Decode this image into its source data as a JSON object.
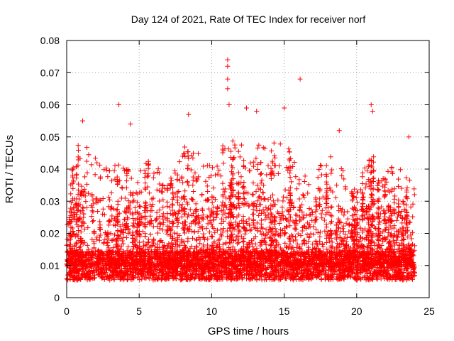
{
  "chart_data": {
    "type": "scatter",
    "title": "Day 124 of 2021, Rate Of TEC Index for receiver norf",
    "xlabel": "GPS time / hours",
    "ylabel": "ROTI / TECUs",
    "xlim": [
      0,
      25
    ],
    "ylim": [
      0,
      0.08
    ],
    "xticks": [
      0,
      5,
      10,
      15,
      20,
      25
    ],
    "yticks": [
      0,
      0.01,
      0.02,
      0.03,
      0.04,
      0.05,
      0.06,
      0.07,
      0.08
    ],
    "xtick_labels": [
      "0",
      "5",
      "10",
      "15",
      "20",
      "25"
    ],
    "ytick_labels": [
      "0",
      "0.01",
      "0.02",
      "0.03",
      "0.04",
      "0.05",
      "0.06",
      "0.07",
      "0.08"
    ],
    "grid": true,
    "marker": "plus",
    "marker_color": "#ff0000",
    "x_data_range": [
      0,
      24
    ],
    "baseline_typical": 0.01,
    "notable_points": [
      {
        "x": 1.1,
        "y": 0.055
      },
      {
        "x": 3.6,
        "y": 0.06
      },
      {
        "x": 4.4,
        "y": 0.054
      },
      {
        "x": 8.4,
        "y": 0.057
      },
      {
        "x": 11.1,
        "y": 0.074
      },
      {
        "x": 11.1,
        "y": 0.072
      },
      {
        "x": 11.1,
        "y": 0.068
      },
      {
        "x": 11.1,
        "y": 0.065
      },
      {
        "x": 11.2,
        "y": 0.06
      },
      {
        "x": 12.4,
        "y": 0.059
      },
      {
        "x": 13.1,
        "y": 0.058
      },
      {
        "x": 15.0,
        "y": 0.059
      },
      {
        "x": 16.1,
        "y": 0.068
      },
      {
        "x": 18.8,
        "y": 0.052
      },
      {
        "x": 21.0,
        "y": 0.06
      },
      {
        "x": 21.1,
        "y": 0.058
      },
      {
        "x": 23.6,
        "y": 0.05
      }
    ],
    "activity_envelope": [
      {
        "x": 0,
        "y": 0.035
      },
      {
        "x": 1,
        "y": 0.05
      },
      {
        "x": 2,
        "y": 0.045
      },
      {
        "x": 3,
        "y": 0.04
      },
      {
        "x": 4,
        "y": 0.045
      },
      {
        "x": 5,
        "y": 0.04
      },
      {
        "x": 6,
        "y": 0.045
      },
      {
        "x": 7,
        "y": 0.035
      },
      {
        "x": 8,
        "y": 0.045
      },
      {
        "x": 9,
        "y": 0.048
      },
      {
        "x": 10,
        "y": 0.042
      },
      {
        "x": 11,
        "y": 0.05
      },
      {
        "x": 12,
        "y": 0.05
      },
      {
        "x": 13,
        "y": 0.052
      },
      {
        "x": 14,
        "y": 0.045
      },
      {
        "x": 15,
        "y": 0.05
      },
      {
        "x": 16,
        "y": 0.04
      },
      {
        "x": 17,
        "y": 0.04
      },
      {
        "x": 18,
        "y": 0.045
      },
      {
        "x": 19,
        "y": 0.04
      },
      {
        "x": 20,
        "y": 0.035
      },
      {
        "x": 21,
        "y": 0.045
      },
      {
        "x": 22,
        "y": 0.04
      },
      {
        "x": 23,
        "y": 0.04
      },
      {
        "x": 24,
        "y": 0.035
      }
    ]
  }
}
